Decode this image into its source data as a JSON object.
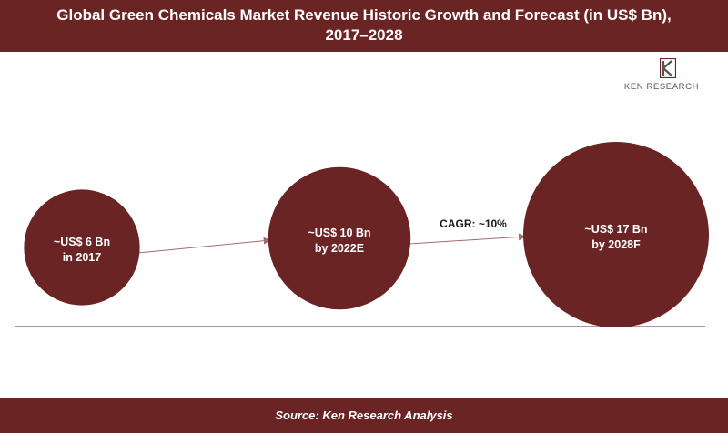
{
  "header": {
    "title_line1": "Global Green Chemicals Market Revenue Historic Growth and Forecast (in US$ Bn),",
    "title_line2": "2017–2028"
  },
  "logo": {
    "text": "KEN RESEARCH"
  },
  "footer": {
    "source": "Source: Ken Research Analysis"
  },
  "colors": {
    "brand": "#6a2424",
    "bubble": "#6a2424",
    "arrow": "#a66a6a"
  },
  "chart_data": {
    "type": "bubble",
    "title": "Global Green Chemicals Market Revenue Historic Growth and Forecast (in US$ Bn), 2017–2028",
    "points": [
      {
        "year": "2017",
        "value": 6,
        "label_line1": "~US$ 6 Bn",
        "label_line2": "in 2017"
      },
      {
        "year": "2022E",
        "value": 10,
        "label_line1": "~US$ 10 Bn",
        "label_line2": "by 2022E"
      },
      {
        "year": "2028F",
        "value": 17,
        "label_line1": "~US$ 17 Bn",
        "label_line2": "by 2028F"
      }
    ],
    "annotations": [
      {
        "text": "CAGR: ~10%",
        "between": [
          "2022E",
          "2028F"
        ]
      }
    ]
  }
}
